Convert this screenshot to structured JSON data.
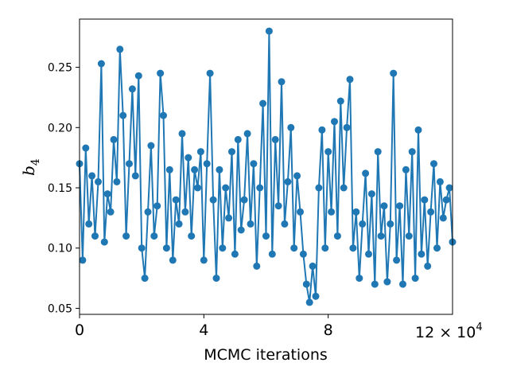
{
  "chart_data": {
    "type": "line",
    "title": "",
    "xlabel": "MCMC iterations",
    "ylabel": "b",
    "ylabel_subscript": "4",
    "x_multiplier_label": "12 × 10",
    "x_multiplier_exponent": "4",
    "xlim": [
      0,
      12
    ],
    "ylim": [
      0.045,
      0.29
    ],
    "xticks": [
      0,
      4,
      8
    ],
    "xtick_labels": [
      "0",
      "4",
      "8"
    ],
    "yticks": [
      0.05,
      0.1,
      0.15,
      0.2,
      0.25
    ],
    "ytick_labels": [
      "0.05",
      "0.10",
      "0.15",
      "0.20",
      "0.25"
    ],
    "grid": false,
    "legend": "none",
    "color": "#1f77b4",
    "series": [
      {
        "x": [
          0.0,
          0.1,
          0.2,
          0.3,
          0.4,
          0.5,
          0.6,
          0.7,
          0.8,
          0.9,
          1.0,
          1.1,
          1.2,
          1.3,
          1.4,
          1.5,
          1.6,
          1.7,
          1.8,
          1.9,
          2.0,
          2.1,
          2.2,
          2.3,
          2.4,
          2.5,
          2.6,
          2.7,
          2.8,
          2.9,
          3.0,
          3.1,
          3.2,
          3.3,
          3.4,
          3.5,
          3.6,
          3.7,
          3.8,
          3.9,
          4.0,
          4.1,
          4.2,
          4.3,
          4.4,
          4.5,
          4.6,
          4.7,
          4.8,
          4.9,
          5.0,
          5.1,
          5.2,
          5.3,
          5.4,
          5.5,
          5.6,
          5.7,
          5.8,
          5.9,
          6.0,
          6.1,
          6.2,
          6.3,
          6.4,
          6.5,
          6.6,
          6.7,
          6.8,
          6.9,
          7.0,
          7.1,
          7.2,
          7.3,
          7.4,
          7.5,
          7.6,
          7.7,
          7.8,
          7.9,
          8.0,
          8.1,
          8.2,
          8.3,
          8.4,
          8.5,
          8.6,
          8.7,
          8.8,
          8.9,
          9.0,
          9.1,
          9.2,
          9.3,
          9.4,
          9.5,
          9.6,
          9.7,
          9.8,
          9.9,
          10.0,
          10.1,
          10.2,
          10.3,
          10.4,
          10.5,
          10.6,
          10.7,
          10.8,
          10.9,
          11.0,
          11.1,
          11.2,
          11.3,
          11.4,
          11.5,
          11.6,
          11.7,
          11.8,
          11.9,
          12.0
        ],
        "values": [
          0.17,
          0.09,
          0.183,
          0.12,
          0.16,
          0.11,
          0.155,
          0.253,
          0.105,
          0.145,
          0.13,
          0.19,
          0.155,
          0.265,
          0.21,
          0.11,
          0.17,
          0.232,
          0.16,
          0.243,
          0.1,
          0.075,
          0.13,
          0.185,
          0.11,
          0.135,
          0.245,
          0.21,
          0.1,
          0.165,
          0.09,
          0.14,
          0.12,
          0.195,
          0.13,
          0.175,
          0.11,
          0.165,
          0.15,
          0.18,
          0.09,
          0.17,
          0.245,
          0.14,
          0.075,
          0.165,
          0.1,
          0.15,
          0.125,
          0.18,
          0.095,
          0.19,
          0.115,
          0.14,
          0.195,
          0.12,
          0.17,
          0.085,
          0.15,
          0.22,
          0.11,
          0.28,
          0.095,
          0.19,
          0.135,
          0.238,
          0.12,
          0.155,
          0.2,
          0.1,
          0.16,
          0.13,
          0.095,
          0.07,
          0.055,
          0.085,
          0.06,
          0.15,
          0.198,
          0.1,
          0.18,
          0.13,
          0.205,
          0.11,
          0.222,
          0.15,
          0.2,
          0.24,
          0.1,
          0.13,
          0.075,
          0.12,
          0.162,
          0.095,
          0.145,
          0.07,
          0.18,
          0.11,
          0.135,
          0.072,
          0.12,
          0.245,
          0.09,
          0.135,
          0.07,
          0.165,
          0.11,
          0.18,
          0.075,
          0.198,
          0.095,
          0.14,
          0.085,
          0.13,
          0.17,
          0.1,
          0.155,
          0.125,
          0.14,
          0.15,
          0.105
        ]
      }
    ]
  }
}
